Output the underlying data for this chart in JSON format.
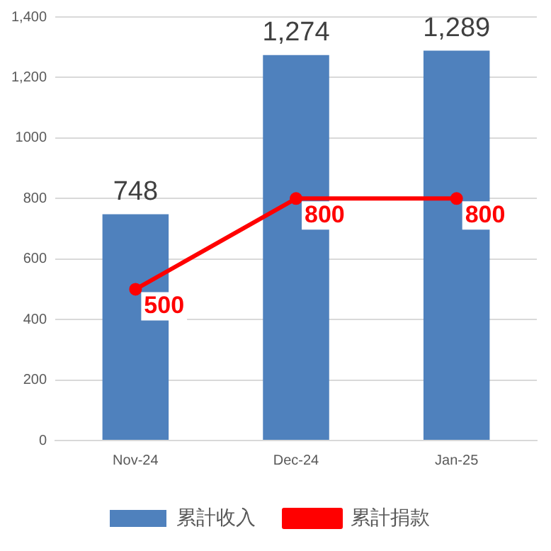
{
  "chart_data": {
    "type": "bar",
    "categories": [
      "Nov-24",
      "Dec-24",
      "Jan-25"
    ],
    "series": [
      {
        "name": "累計收入",
        "color": "#4f81bd",
        "values": [
          748,
          1274,
          1289
        ],
        "value_labels": [
          "748",
          "1,274",
          "1,289"
        ]
      },
      {
        "name": "累計捐款",
        "type": "line",
        "color": "#ff0000",
        "values": [
          500,
          800,
          800
        ],
        "value_labels": [
          "500",
          "800",
          "800"
        ],
        "marker": "circle"
      }
    ],
    "ylim": [
      0,
      1400
    ],
    "yticks": [
      0,
      200,
      400,
      600,
      800,
      1000,
      {
        "value": 1200,
        "label": "1,200"
      },
      {
        "value": 1400,
        "label": "1,400"
      }
    ],
    "grid": "y",
    "legend": "bottom"
  }
}
